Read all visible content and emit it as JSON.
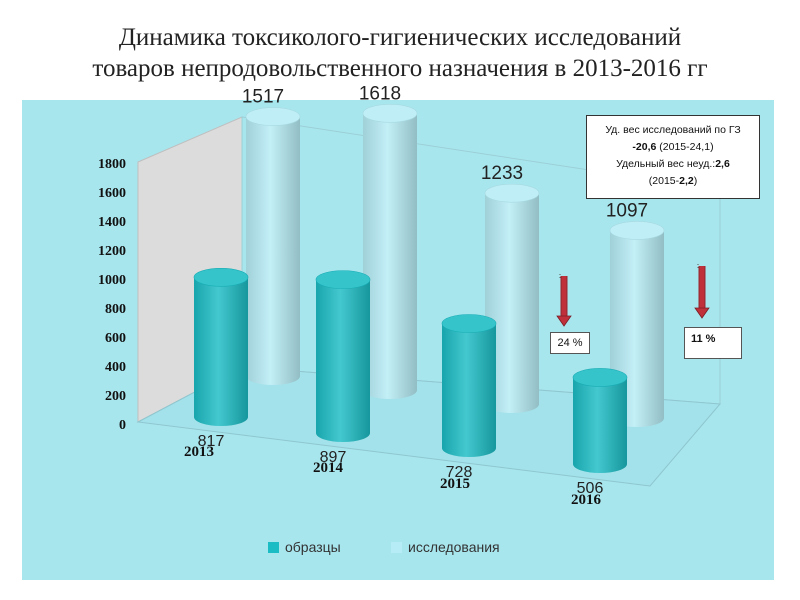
{
  "title": {
    "line1": "Динамика токсиколого-гигиенических исследований",
    "line2": "товаров непродовольственного назначения в 2013-2016 гг"
  },
  "note": {
    "line1_prefix": "Уд. вес исследований по ГЗ",
    "line2_value": "-20,6",
    "line2_rest": " (2015-24,1)",
    "line3_prefix": "Удельный вес неуд.:",
    "line3_value": "2,6",
    "line4_prefix": "(2015-",
    "line4_value": "2,2",
    "line4_suffix": ")"
  },
  "badges": {
    "left": "24 %",
    "right": "11 %"
  },
  "colors": {
    "samples": "#1bbcc4",
    "studies": "#b6ecf5",
    "panel": "#a8e6ee",
    "arrow": "#c0303a"
  },
  "chart_data": {
    "type": "bar",
    "style": "3d-cylinder",
    "categories": [
      "2013",
      "2014",
      "2015",
      "2016"
    ],
    "series": [
      {
        "name": "образцы",
        "values": [
          817,
          897,
          728,
          506
        ],
        "color": "#1bbcc4"
      },
      {
        "name": "исследования",
        "values": [
          1517,
          1618,
          1233,
          1097
        ],
        "color": "#b6ecf5"
      }
    ],
    "y_ticks": [
      "0",
      "200",
      "400",
      "600",
      "800",
      "1000",
      "1200",
      "1400",
      "1600",
      "1800"
    ],
    "ylim": [
      0,
      1800
    ],
    "legend": "bottom",
    "grid": false
  }
}
